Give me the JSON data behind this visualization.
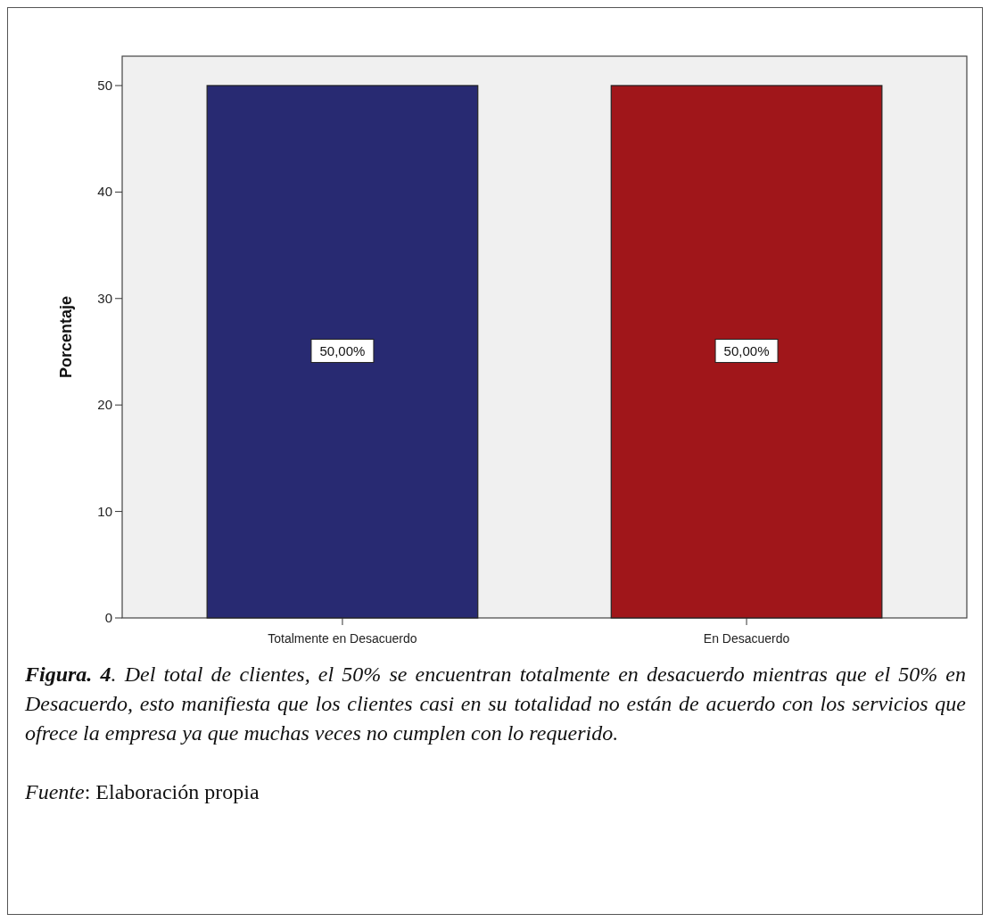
{
  "chart_data": {
    "type": "bar",
    "ylabel": "Porcentaje",
    "categories": [
      "Totalmente en Desacuerdo",
      "En Desacuerdo"
    ],
    "values": [
      50,
      50
    ],
    "colors": [
      "#282a72",
      "#a0161a"
    ],
    "value_labels": [
      "50,00%",
      "50,00%"
    ],
    "ylim": [
      0,
      52.76
    ],
    "yticks": [
      0,
      10,
      20,
      30,
      40,
      50
    ],
    "annotations": [
      "Figura. 4. Del total de clientes, el 50% se encuentran totalmente en desacuerdo mientras que el 50% en Desacuerdo, esto manifiesta que los clientes casi en su totalidad no están de acuerdo con los servicios que ofrece la empresa ya que muchas veces no cumplen con lo requerido.",
      "Fuente: Elaboración propia"
    ]
  }
}
